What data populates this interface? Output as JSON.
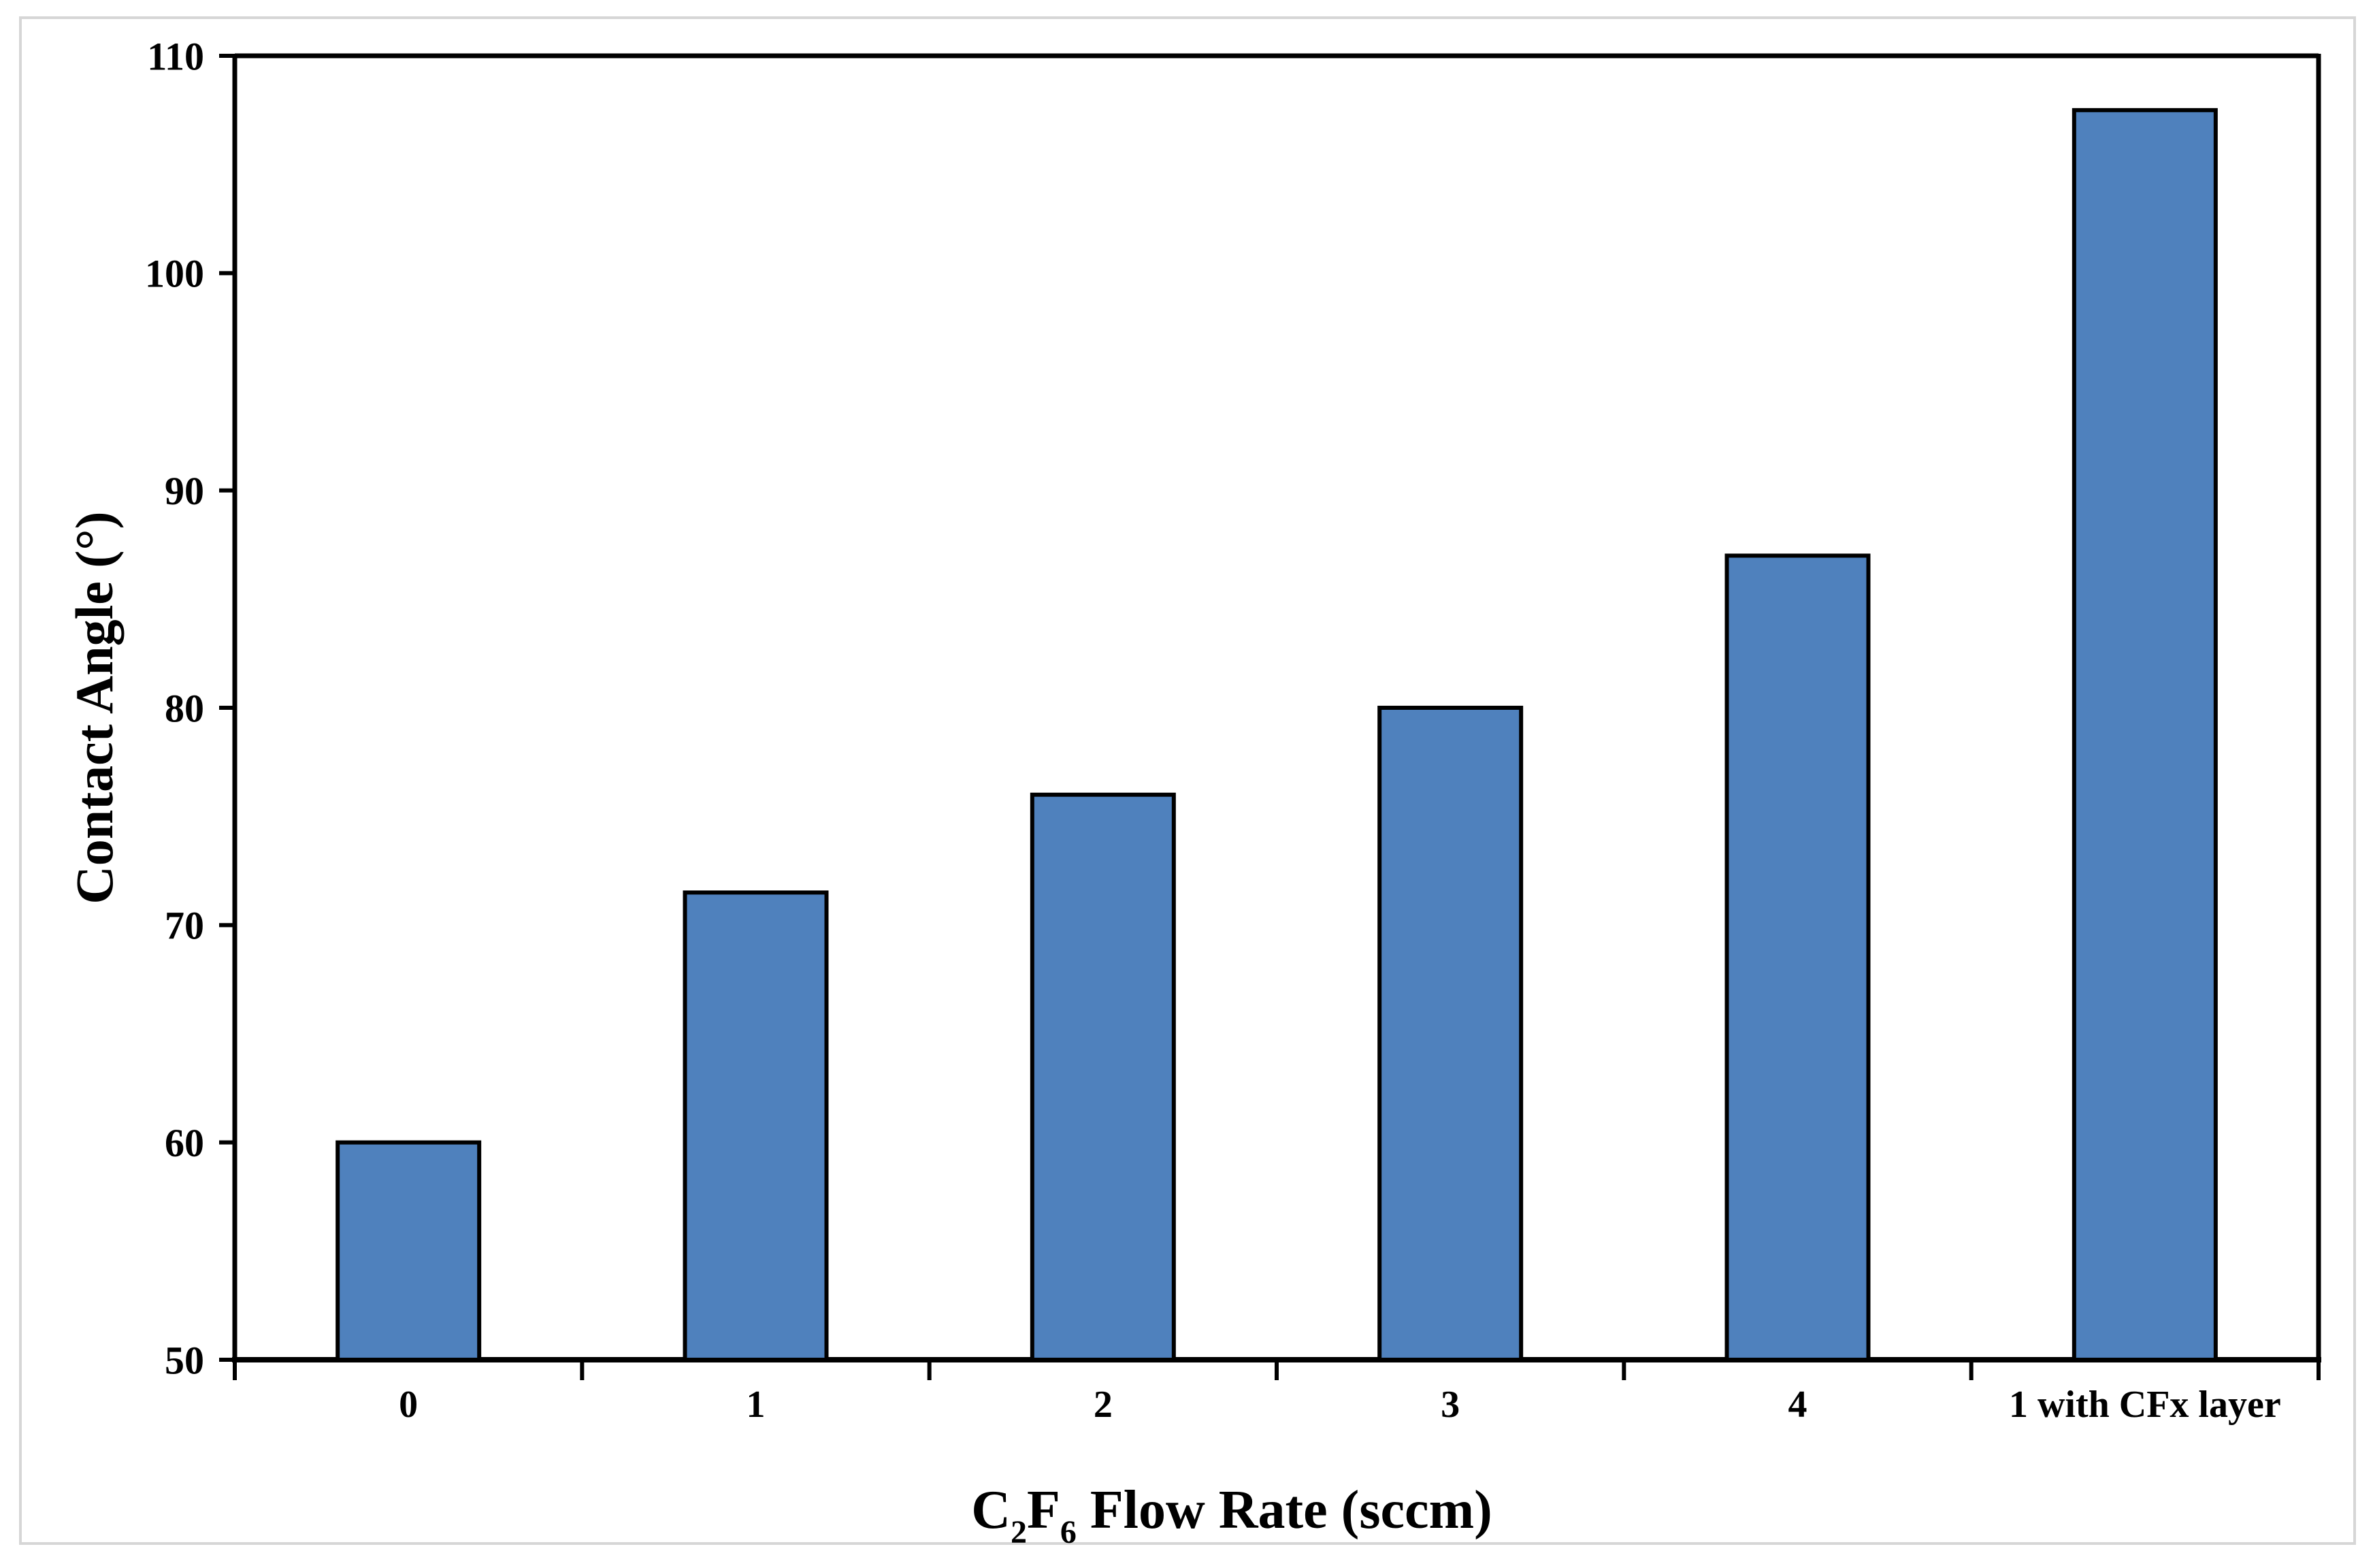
{
  "figure": {
    "background_color": "#ffffff",
    "frame_color": "#d6d6d6"
  },
  "chart_data": {
    "type": "bar",
    "title": "",
    "categories": [
      "0",
      "1",
      "2",
      "3",
      "4",
      "1 with CFx layer"
    ],
    "values": [
      60,
      71.5,
      76,
      80,
      87,
      107.5
    ],
    "xlabel": "C2F6 Flow Rate (sccm)",
    "xlabel_parts": [
      {
        "t": "C",
        "sub": false
      },
      {
        "t": "2",
        "sub": true
      },
      {
        "t": "F",
        "sub": false
      },
      {
        "t": "6",
        "sub": true
      },
      {
        "t": " Flow Rate (sccm)",
        "sub": false
      }
    ],
    "ylabel": "Contact Angle (°)",
    "ylim": [
      50,
      110
    ],
    "ytick_step": 10,
    "ytick_labels": [
      "110",
      "100",
      "90",
      "80",
      "70",
      "60",
      "50"
    ],
    "grid": false,
    "legend": "none",
    "bar_fill_color": "#4f81bd",
    "bar_border_color": "#000000",
    "axis_color": "#000000"
  }
}
